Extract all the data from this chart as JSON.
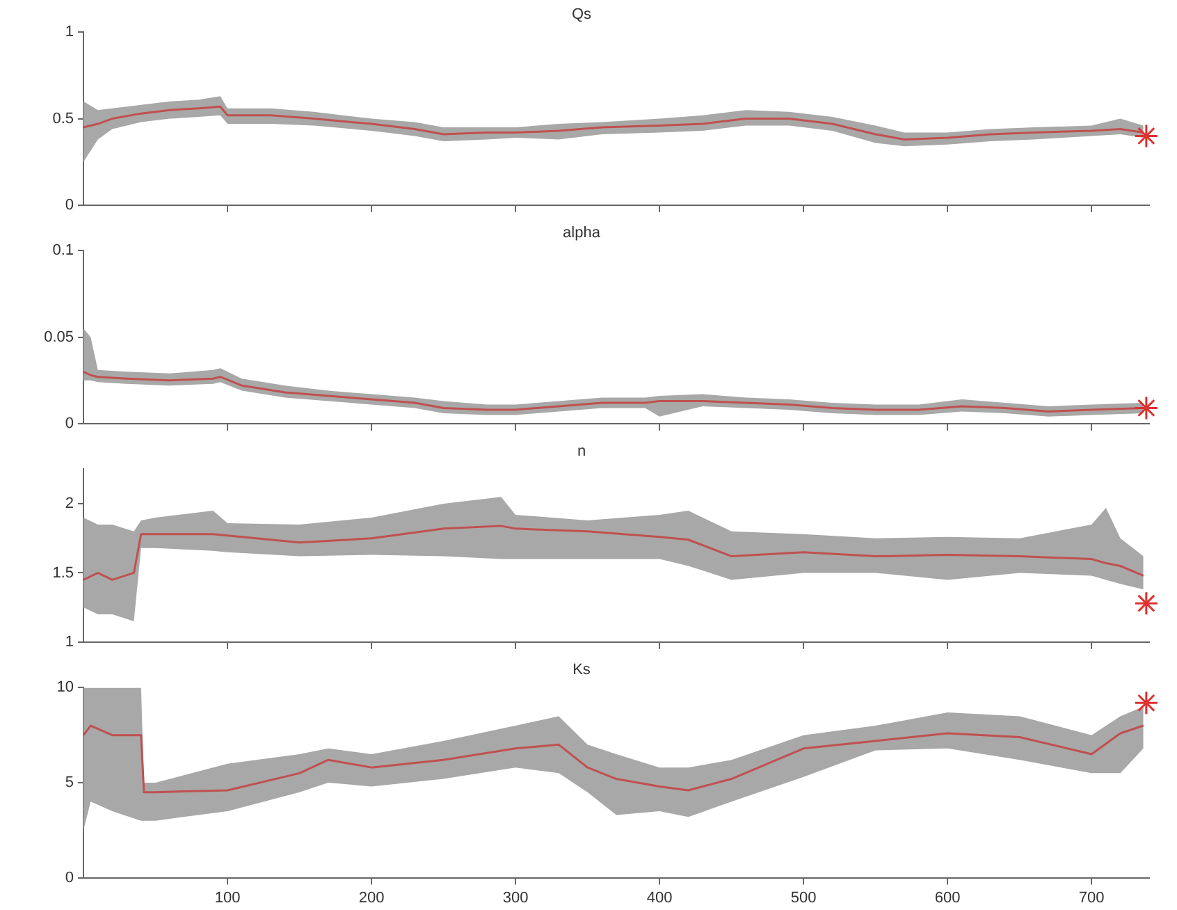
{
  "chart_data": [
    {
      "type": "line",
      "title": "Qs",
      "xlim": [
        0,
        740
      ],
      "xticks": [
        100,
        200,
        300,
        400,
        500,
        600,
        700
      ],
      "ylim": [
        0,
        1
      ],
      "yticks": [
        0,
        0.5,
        1
      ],
      "tick_labels": "y",
      "grid": false,
      "legend": false,
      "series": [
        {
          "color": "#c05050",
          "marker": "none",
          "x": [
            0,
            10,
            20,
            40,
            60,
            80,
            95,
            100,
            130,
            160,
            200,
            230,
            250,
            280,
            300,
            330,
            360,
            400,
            430,
            460,
            490,
            520,
            550,
            570,
            600,
            630,
            660,
            700,
            720,
            736
          ],
          "values": [
            0.45,
            0.47,
            0.5,
            0.53,
            0.55,
            0.56,
            0.57,
            0.52,
            0.52,
            0.5,
            0.47,
            0.44,
            0.41,
            0.42,
            0.42,
            0.43,
            0.45,
            0.46,
            0.47,
            0.5,
            0.5,
            0.47,
            0.41,
            0.38,
            0.39,
            0.41,
            0.42,
            0.43,
            0.44,
            0.42
          ],
          "upper": [
            0.6,
            0.55,
            0.56,
            0.58,
            0.6,
            0.61,
            0.63,
            0.56,
            0.56,
            0.54,
            0.5,
            0.48,
            0.45,
            0.45,
            0.45,
            0.47,
            0.48,
            0.5,
            0.52,
            0.55,
            0.54,
            0.51,
            0.46,
            0.42,
            0.42,
            0.44,
            0.45,
            0.46,
            0.5,
            0.46
          ],
          "lower": [
            0.25,
            0.38,
            0.44,
            0.48,
            0.5,
            0.51,
            0.52,
            0.47,
            0.47,
            0.46,
            0.43,
            0.4,
            0.37,
            0.38,
            0.39,
            0.38,
            0.41,
            0.42,
            0.43,
            0.46,
            0.46,
            0.43,
            0.36,
            0.34,
            0.35,
            0.37,
            0.38,
            0.4,
            0.41,
            0.39
          ]
        },
        {
          "type": "scatter",
          "color": "#e03030",
          "marker": "cross",
          "x": [
            738
          ],
          "values": [
            0.4
          ]
        }
      ]
    },
    {
      "type": "line",
      "title": "alpha",
      "xlim": [
        0,
        740
      ],
      "xticks": [
        100,
        200,
        300,
        400,
        500,
        600,
        700
      ],
      "ylim": [
        0,
        0.1
      ],
      "yticks": [
        0,
        0.05,
        0.1
      ],
      "tick_labels": "y",
      "grid": false,
      "legend": false,
      "series": [
        {
          "color": "#c05050",
          "marker": "none",
          "x": [
            0,
            5,
            10,
            30,
            60,
            90,
            95,
            110,
            140,
            170,
            200,
            230,
            250,
            280,
            300,
            330,
            360,
            390,
            400,
            430,
            460,
            490,
            520,
            550,
            580,
            610,
            640,
            670,
            700,
            736
          ],
          "values": [
            0.03,
            0.028,
            0.027,
            0.026,
            0.025,
            0.026,
            0.027,
            0.022,
            0.018,
            0.016,
            0.014,
            0.012,
            0.009,
            0.008,
            0.008,
            0.01,
            0.012,
            0.012,
            0.013,
            0.013,
            0.012,
            0.011,
            0.009,
            0.008,
            0.008,
            0.01,
            0.009,
            0.007,
            0.008,
            0.009
          ],
          "upper": [
            0.055,
            0.05,
            0.031,
            0.03,
            0.029,
            0.031,
            0.032,
            0.026,
            0.022,
            0.019,
            0.017,
            0.015,
            0.013,
            0.011,
            0.011,
            0.013,
            0.015,
            0.015,
            0.016,
            0.017,
            0.015,
            0.014,
            0.012,
            0.011,
            0.011,
            0.014,
            0.012,
            0.01,
            0.011,
            0.012
          ],
          "lower": [
            0.025,
            0.025,
            0.024,
            0.023,
            0.022,
            0.023,
            0.024,
            0.019,
            0.015,
            0.013,
            0.011,
            0.009,
            0.006,
            0.005,
            0.005,
            0.007,
            0.009,
            0.009,
            0.004,
            0.01,
            0.009,
            0.008,
            0.006,
            0.005,
            0.005,
            0.007,
            0.006,
            0.004,
            0.005,
            0.006
          ]
        },
        {
          "type": "scatter",
          "color": "#e03030",
          "marker": "cross",
          "x": [
            738
          ],
          "values": [
            0.009
          ]
        }
      ]
    },
    {
      "type": "line",
      "title": "n",
      "xlim": [
        0,
        740
      ],
      "xticks": [
        100,
        200,
        300,
        400,
        500,
        600,
        700
      ],
      "ylim": [
        1,
        2.25
      ],
      "yticks": [
        1,
        1.5,
        2
      ],
      "tick_labels": "y",
      "grid": false,
      "legend": false,
      "series": [
        {
          "color": "#c05050",
          "marker": "none",
          "x": [
            0,
            10,
            20,
            35,
            40,
            50,
            90,
            100,
            150,
            200,
            250,
            290,
            300,
            350,
            400,
            420,
            450,
            500,
            550,
            600,
            650,
            700,
            710,
            720,
            736
          ],
          "values": [
            1.45,
            1.5,
            1.45,
            1.5,
            1.78,
            1.78,
            1.78,
            1.77,
            1.72,
            1.75,
            1.82,
            1.84,
            1.82,
            1.8,
            1.76,
            1.74,
            1.62,
            1.65,
            1.62,
            1.63,
            1.62,
            1.6,
            1.57,
            1.55,
            1.48
          ],
          "upper": [
            1.9,
            1.85,
            1.85,
            1.8,
            1.88,
            1.9,
            1.95,
            1.86,
            1.85,
            1.9,
            2.0,
            2.05,
            1.92,
            1.88,
            1.92,
            1.95,
            1.8,
            1.78,
            1.75,
            1.76,
            1.75,
            1.85,
            1.97,
            1.75,
            1.62
          ],
          "lower": [
            1.25,
            1.2,
            1.2,
            1.15,
            1.68,
            1.68,
            1.66,
            1.65,
            1.62,
            1.63,
            1.62,
            1.6,
            1.6,
            1.6,
            1.6,
            1.55,
            1.45,
            1.5,
            1.5,
            1.45,
            1.5,
            1.48,
            1.45,
            1.42,
            1.38
          ]
        },
        {
          "type": "scatter",
          "color": "#e03030",
          "marker": "cross",
          "x": [
            738
          ],
          "values": [
            1.28
          ]
        }
      ]
    },
    {
      "type": "line",
      "title": "Ks",
      "xlim": [
        0,
        740
      ],
      "xticks": [
        100,
        200,
        300,
        400,
        500,
        600,
        700
      ],
      "ylim": [
        0,
        10
      ],
      "yticks": [
        0,
        5,
        10
      ],
      "grid": false,
      "legend": false,
      "series": [
        {
          "color": "#c05050",
          "marker": "none",
          "x": [
            0,
            5,
            20,
            40,
            42,
            50,
            100,
            150,
            170,
            200,
            250,
            300,
            330,
            350,
            370,
            400,
            420,
            450,
            500,
            550,
            600,
            650,
            700,
            720,
            736
          ],
          "values": [
            7.5,
            8,
            7.5,
            7.5,
            4.5,
            4.5,
            4.6,
            5.5,
            6.2,
            5.8,
            6.2,
            6.8,
            7,
            5.8,
            5.2,
            4.8,
            4.6,
            5.2,
            6.8,
            7.2,
            7.6,
            7.4,
            6.5,
            7.6,
            8
          ],
          "upper": [
            10,
            10,
            10,
            10,
            5,
            5,
            6,
            6.5,
            6.8,
            6.5,
            7.2,
            8,
            8.5,
            7,
            6.5,
            5.8,
            5.8,
            6.2,
            7.5,
            8,
            8.7,
            8.5,
            7.5,
            8.5,
            9
          ],
          "lower": [
            2.5,
            4,
            3.5,
            3,
            3,
            3,
            3.5,
            4.5,
            5,
            4.8,
            5.2,
            5.8,
            5.5,
            4.5,
            3.3,
            3.5,
            3.2,
            4,
            5.3,
            6.7,
            6.8,
            6.2,
            5.5,
            5.5,
            6.8
          ]
        },
        {
          "type": "scatter",
          "color": "#e03030",
          "marker": "cross",
          "x": [
            738
          ],
          "values": [
            9.2
          ]
        }
      ]
    }
  ]
}
